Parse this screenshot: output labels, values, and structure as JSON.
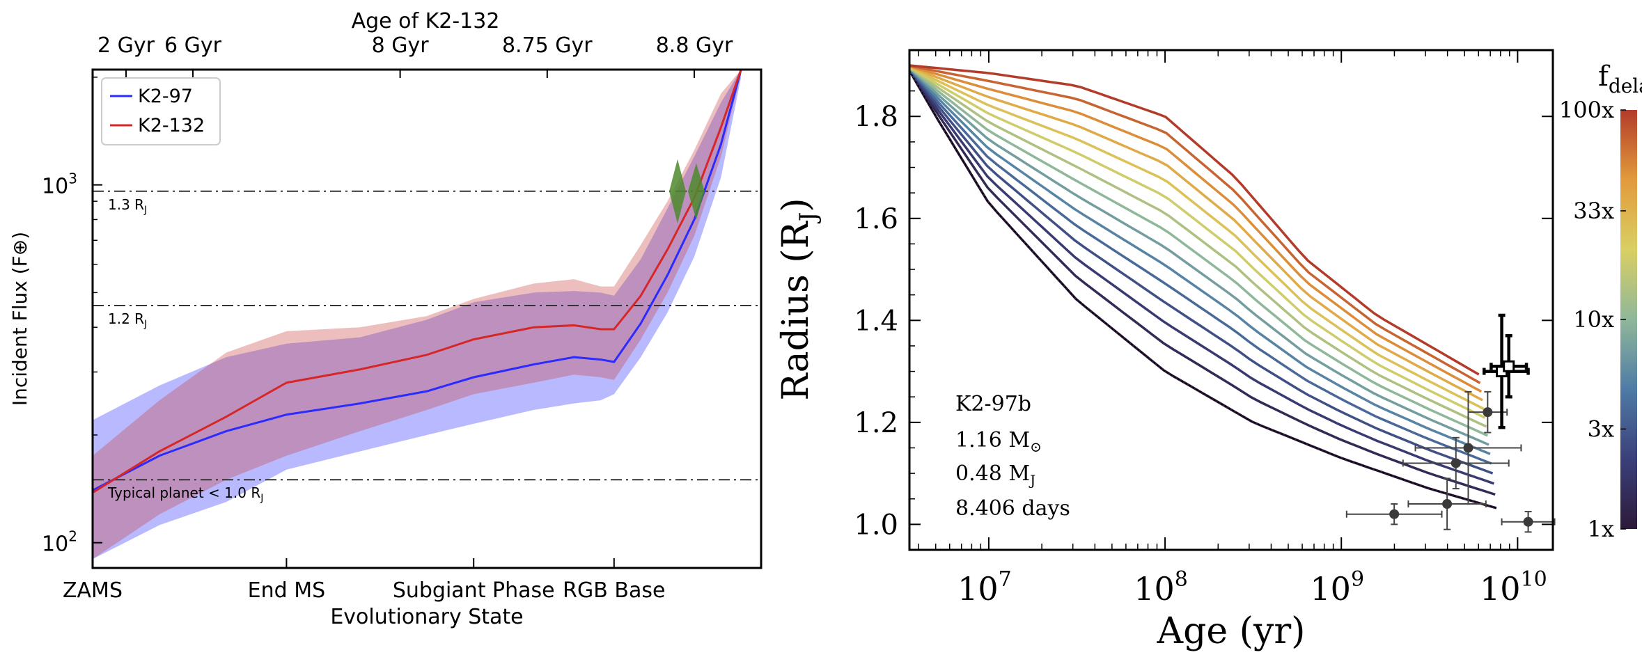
{
  "figure": {
    "left_panel": {
      "top_axis_title": "Age of K2-132",
      "top_ticks": [
        "2 Gyr",
        "6 Gyr",
        "8 Gyr",
        "8.75 Gyr",
        "8.8 Gyr"
      ],
      "ylabel": "Incident Flux (F⊕)",
      "y_ticks": [
        {
          "base": "10",
          "exp": "2",
          "value": 100
        },
        {
          "base": "10",
          "exp": "3",
          "value": 1000
        }
      ],
      "bottom_ticks": [
        "ZAMS",
        "End MS",
        "Subgiant Phase",
        "RGB Base"
      ],
      "xlabel": "Evolutionary State",
      "legend": [
        {
          "label": "K2-97",
          "color": "#2b2bff"
        },
        {
          "label": "K2-132",
          "color": "#d62728"
        }
      ],
      "radius_lines": [
        {
          "label": "1.3 R",
          "sub": "J",
          "flux": 960
        },
        {
          "label": "1.2 R",
          "sub": "J",
          "flux": 460
        },
        {
          "label": "Typical planet  < 1.0 R",
          "sub": "J",
          "flux": 150
        }
      ]
    },
    "right_panel": {
      "ylabel": "Radius (R",
      "ylabel_sub": "J",
      "ylabel_end": ")",
      "xlabel": "Age (yr)",
      "y_ticks": [
        "1.0",
        "1.2",
        "1.4",
        "1.6",
        "1.8"
      ],
      "x_ticks": [
        {
          "base": "10",
          "exp": "7"
        },
        {
          "base": "10",
          "exp": "8"
        },
        {
          "base": "10",
          "exp": "9"
        },
        {
          "base": "10",
          "exp": "10"
        }
      ],
      "annotation": {
        "name": "K2-97b",
        "mass_star": "1.16 M",
        "mass_star_sub": "⊙",
        "mass_planet": "0.48 M",
        "mass_planet_sub": "J",
        "period": "8.406 days"
      },
      "colorbar": {
        "title": "f",
        "title_sub": "delay",
        "ticks": [
          "1x",
          "3x",
          "10x",
          "33x",
          "100x"
        ],
        "colors": [
          "#2d1a3a",
          "#3b3f7a",
          "#4e7ba6",
          "#8fb79a",
          "#d9cf63",
          "#e29b3c",
          "#b33b2a"
        ]
      }
    }
  },
  "chart_data": [
    {
      "type": "area",
      "title": "Age of K2-132",
      "xlabel": "Evolutionary State",
      "ylabel": "Incident Flux (F⊕)",
      "yscale": "log",
      "ylim": [
        85,
        2100
      ],
      "xlim": [
        0,
        1
      ],
      "x_categories": [
        "ZAMS",
        "End MS",
        "Subgiant Phase",
        "RGB Base"
      ],
      "x_category_pos": [
        0.0,
        0.29,
        0.57,
        0.78
      ],
      "top_tick_pos": [
        0.05,
        0.15,
        0.46,
        0.68,
        0.9
      ],
      "series": [
        {
          "name": "K2-97",
          "color": "#2b2bff",
          "x": [
            0.0,
            0.1,
            0.2,
            0.29,
            0.4,
            0.5,
            0.57,
            0.66,
            0.72,
            0.76,
            0.78,
            0.82,
            0.86,
            0.9,
            0.94,
            0.97
          ],
          "y": [
            140,
            175,
            205,
            228,
            245,
            265,
            290,
            315,
            330,
            325,
            320,
            410,
            560,
            800,
            1300,
            2100
          ],
          "band_upper": [
            220,
            275,
            330,
            360,
            375,
            420,
            470,
            500,
            505,
            500,
            490,
            620,
            860,
            1200,
            1700,
            2100
          ],
          "band_lower": [
            90,
            112,
            130,
            160,
            180,
            200,
            215,
            235,
            245,
            250,
            260,
            330,
            440,
            630,
            1050,
            2000
          ]
        },
        {
          "name": "K2-132",
          "color": "#d62728",
          "x": [
            0.0,
            0.1,
            0.2,
            0.29,
            0.4,
            0.5,
            0.57,
            0.66,
            0.72,
            0.76,
            0.78,
            0.82,
            0.86,
            0.9,
            0.94,
            0.97
          ],
          "y": [
            138,
            180,
            225,
            280,
            305,
            335,
            370,
            400,
            405,
            395,
            395,
            490,
            660,
            920,
            1450,
            2100
          ],
          "band_upper": [
            175,
            250,
            340,
            390,
            400,
            430,
            480,
            530,
            545,
            520,
            520,
            680,
            900,
            1250,
            1800,
            2100
          ],
          "band_lower": [
            90,
            120,
            150,
            175,
            205,
            235,
            260,
            280,
            295,
            290,
            285,
            370,
            500,
            720,
            1200,
            2050
          ]
        }
      ],
      "horizontal_lines": [
        960,
        460,
        150
      ],
      "markers": [
        {
          "x": 0.875,
          "y_low": 780,
          "y_high": 1180,
          "color": "#4f8a2e"
        },
        {
          "x": 0.903,
          "y_low": 800,
          "y_high": 1150,
          "color": "#4f8a2e"
        }
      ]
    },
    {
      "type": "line",
      "title": "K2-97b",
      "xlabel": "Age (yr)",
      "ylabel": "Radius (RJ)",
      "xscale": "log",
      "xlim_log10": [
        6.55,
        10.2
      ],
      "ylim": [
        0.95,
        1.93
      ],
      "series_count": 15,
      "series": [
        {
          "name": "1x",
          "x_log10": [
            6.55,
            6.7,
            7.0,
            7.5,
            8.0,
            8.5,
            9.0,
            9.5,
            9.9
          ],
          "y": [
            1.89,
            1.8,
            1.63,
            1.44,
            1.3,
            1.2,
            1.13,
            1.07,
            1.03
          ]
        },
        {
          "name": "100x",
          "x_log10": [
            6.55,
            7.0,
            7.5,
            8.0,
            8.4,
            8.8,
            9.2,
            9.6,
            9.9
          ],
          "y": [
            1.9,
            1.885,
            1.86,
            1.8,
            1.68,
            1.52,
            1.41,
            1.33,
            1.27
          ]
        }
      ],
      "observations": [
        {
          "x_log10": 9.3,
          "y": 1.02,
          "xerr_log10": [
            0.27,
            0.27
          ],
          "yerr": [
            0.02,
            0.02
          ]
        },
        {
          "x_log10": 9.6,
          "y": 1.04,
          "xerr_log10": [
            0.22,
            0.22
          ],
          "yerr": [
            0.05,
            0.05
          ]
        },
        {
          "x_log10": 10.06,
          "y": 1.005,
          "xerr_log10": [
            0.15,
            0.15
          ],
          "yerr": [
            0.02,
            0.02
          ]
        },
        {
          "x_log10": 9.65,
          "y": 1.12,
          "xerr_log10": [
            0.3,
            0.3
          ],
          "yerr": [
            0.05,
            0.05
          ]
        },
        {
          "x_log10": 9.72,
          "y": 1.15,
          "xerr_log10": [
            0.3,
            0.3
          ],
          "yerr": [
            0.11,
            0.11
          ]
        },
        {
          "x_log10": 9.83,
          "y": 1.22,
          "xerr_log10": [
            0.11,
            0.11
          ],
          "yerr": [
            0.04,
            0.04
          ]
        },
        {
          "x_log10": 9.91,
          "y": 1.3,
          "xerr_log10": [
            0.1,
            0.15
          ],
          "yerr": [
            0.11,
            0.11
          ],
          "highlight": true
        },
        {
          "x_log10": 9.95,
          "y": 1.31,
          "xerr_log10": [
            0.1,
            0.1
          ],
          "yerr": [
            0.06,
            0.06
          ],
          "highlight": true
        }
      ]
    }
  ]
}
